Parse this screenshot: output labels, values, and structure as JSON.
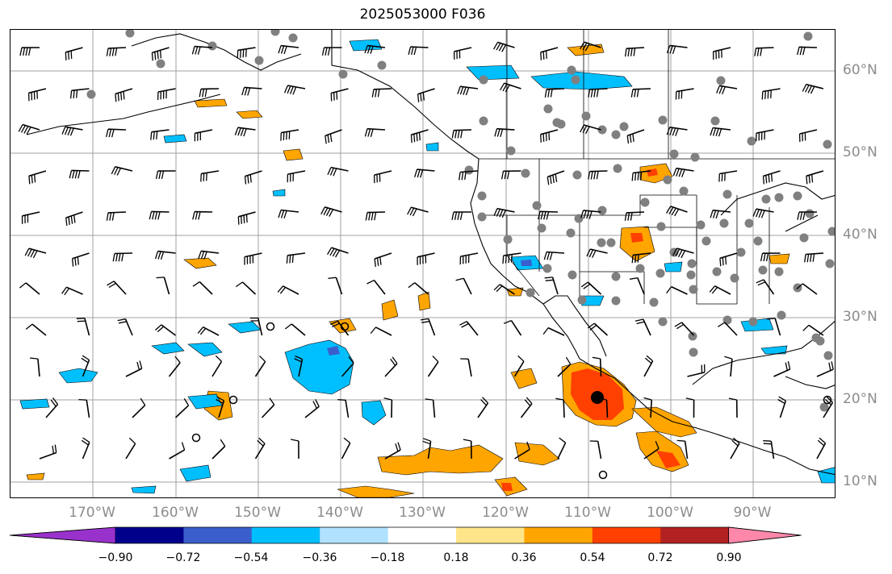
{
  "title": "2025053000 F036",
  "lat_labels": [
    "60°N",
    "50°N",
    "40°N",
    "30°N",
    "20°N",
    "10°N"
  ],
  "lon_labels": [
    "170°W",
    "160°W",
    "150°W",
    "140°W",
    "130°W",
    "120°W",
    "110°W",
    "100°W",
    "90°W"
  ],
  "colorbar": {
    "ticks": [
      "−0.90",
      "−0.72",
      "−0.54",
      "−0.36",
      "−0.18",
      "0.18",
      "0.36",
      "0.54",
      "0.72",
      "0.90"
    ],
    "colors": [
      "#9932cc",
      "#00008b",
      "#3a5fcd",
      "#00bfff",
      "#b0e2ff",
      "#ffffff",
      "#ffe58a",
      "#ffa500",
      "#ff4000",
      "#b22222",
      "#ff88aa"
    ]
  },
  "colors": {
    "grid": "#a0a0a0",
    "coast": "#000000",
    "station": "#808080",
    "label": "#8c8c8c"
  }
}
